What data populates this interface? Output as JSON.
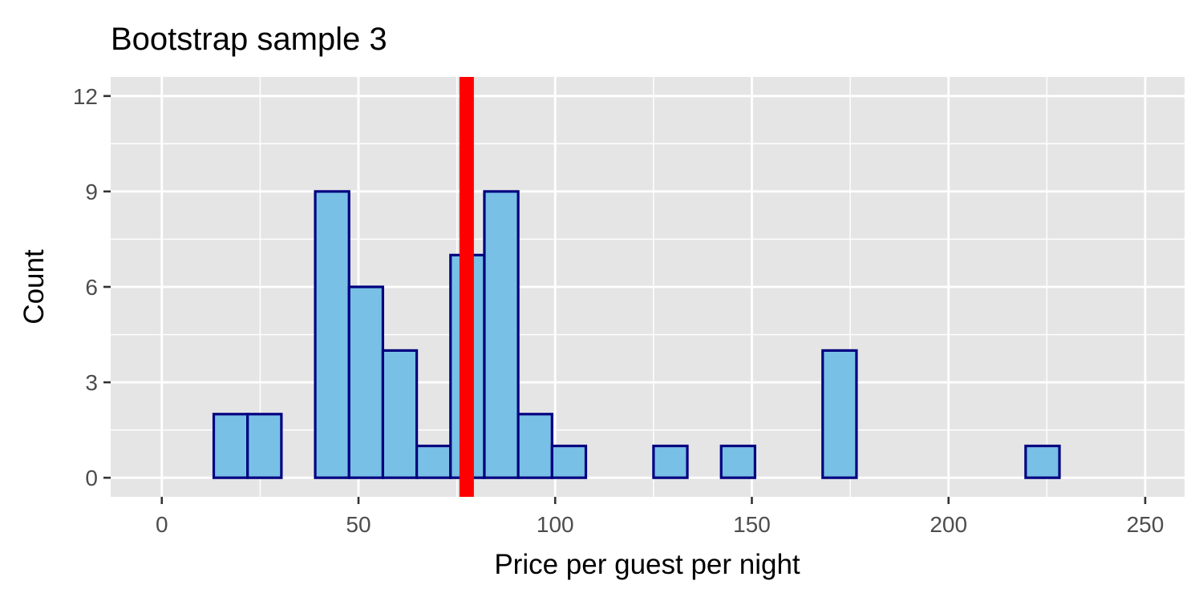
{
  "chart_data": {
    "type": "bar",
    "title": "Bootstrap sample 3",
    "xlabel": "Price per guest per night",
    "ylabel": "Count",
    "xlim": [
      -13,
      260
    ],
    "ylim": [
      -0.6,
      12.6
    ],
    "x_ticks": [
      0,
      50,
      100,
      150,
      200,
      250
    ],
    "y_ticks": [
      0,
      3,
      6,
      9,
      12
    ],
    "bin_width": 8.6,
    "bins": [
      {
        "x0": 4.6,
        "x1": 13.2,
        "count": 0
      },
      {
        "x0": 13.2,
        "x1": 21.8,
        "count": 2
      },
      {
        "x0": 21.8,
        "x1": 30.4,
        "count": 2
      },
      {
        "x0": 30.4,
        "x1": 39.0,
        "count": 0
      },
      {
        "x0": 39.0,
        "x1": 47.6,
        "count": 9
      },
      {
        "x0": 47.6,
        "x1": 56.2,
        "count": 6
      },
      {
        "x0": 56.2,
        "x1": 64.8,
        "count": 4
      },
      {
        "x0": 64.8,
        "x1": 73.4,
        "count": 1
      },
      {
        "x0": 73.4,
        "x1": 82.0,
        "count": 7
      },
      {
        "x0": 82.0,
        "x1": 90.6,
        "count": 9
      },
      {
        "x0": 90.6,
        "x1": 99.2,
        "count": 2
      },
      {
        "x0": 99.2,
        "x1": 107.8,
        "count": 1
      },
      {
        "x0": 107.8,
        "x1": 116.4,
        "count": 0
      },
      {
        "x0": 116.4,
        "x1": 125.0,
        "count": 0
      },
      {
        "x0": 125.0,
        "x1": 133.6,
        "count": 1
      },
      {
        "x0": 133.6,
        "x1": 142.2,
        "count": 0
      },
      {
        "x0": 142.2,
        "x1": 150.8,
        "count": 1
      },
      {
        "x0": 150.8,
        "x1": 159.4,
        "count": 0
      },
      {
        "x0": 159.4,
        "x1": 168.0,
        "count": 0
      },
      {
        "x0": 168.0,
        "x1": 176.6,
        "count": 4
      },
      {
        "x0": 176.6,
        "x1": 185.2,
        "count": 0
      },
      {
        "x0": 185.2,
        "x1": 193.8,
        "count": 0
      },
      {
        "x0": 193.8,
        "x1": 202.4,
        "count": 0
      },
      {
        "x0": 202.4,
        "x1": 211.0,
        "count": 0
      },
      {
        "x0": 211.0,
        "x1": 219.6,
        "count": 0
      },
      {
        "x0": 219.6,
        "x1": 228.2,
        "count": 1
      },
      {
        "x0": 228.2,
        "x1": 236.8,
        "count": 0
      },
      {
        "x0": 236.8,
        "x1": 245.4,
        "count": 0
      }
    ],
    "reference_line": {
      "x": 77.5,
      "color": "#ff0000"
    },
    "colors": {
      "bar_fill": "#78c0e5",
      "bar_stroke": "#000080",
      "panel_bg": "#e5e5e5",
      "grid": "#ffffff"
    },
    "grid": true,
    "legend": "none"
  }
}
